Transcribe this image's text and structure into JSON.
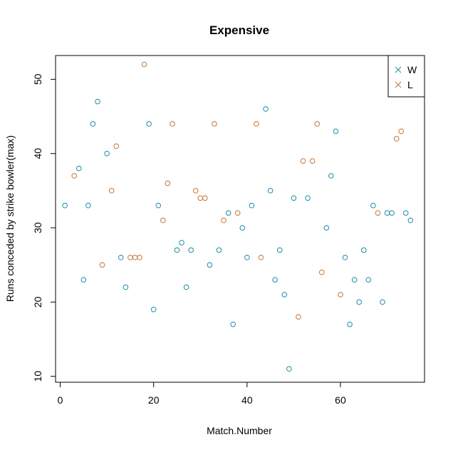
{
  "chart_data": {
    "type": "scatter",
    "title": "Expensive",
    "xlabel": "Match.Number",
    "ylabel": "Runs conceded by strike bowler(max)",
    "xlim": [
      -1,
      78
    ],
    "ylim": [
      9.2,
      53.2
    ],
    "xticks": [
      0,
      20,
      40,
      60
    ],
    "yticks": [
      10,
      20,
      30,
      40,
      50
    ],
    "legend_position": "top-right",
    "series": [
      {
        "name": "W",
        "color": "#1b8ca6",
        "points": [
          [
            1,
            33
          ],
          [
            4,
            38
          ],
          [
            5,
            23
          ],
          [
            6,
            33
          ],
          [
            7,
            44
          ],
          [
            8,
            47
          ],
          [
            10,
            40
          ],
          [
            13,
            26
          ],
          [
            14,
            22
          ],
          [
            19,
            44
          ],
          [
            20,
            19
          ],
          [
            21,
            33
          ],
          [
            25,
            27
          ],
          [
            26,
            28
          ],
          [
            27,
            22
          ],
          [
            28,
            27
          ],
          [
            32,
            25
          ],
          [
            34,
            27
          ],
          [
            36,
            32
          ],
          [
            37,
            17
          ],
          [
            39,
            30
          ],
          [
            40,
            26
          ],
          [
            41,
            33
          ],
          [
            44,
            46
          ],
          [
            45,
            35
          ],
          [
            46,
            23
          ],
          [
            47,
            27
          ],
          [
            48,
            21
          ],
          [
            49,
            11
          ],
          [
            50,
            34
          ],
          [
            53,
            34
          ],
          [
            57,
            30
          ],
          [
            58,
            37
          ],
          [
            59,
            43
          ],
          [
            61,
            26
          ],
          [
            62,
            17
          ],
          [
            63,
            23
          ],
          [
            64,
            20
          ],
          [
            65,
            27
          ],
          [
            66,
            23
          ],
          [
            67,
            33
          ],
          [
            69,
            20
          ],
          [
            70,
            32
          ],
          [
            71,
            32
          ],
          [
            74,
            32
          ],
          [
            75,
            31
          ]
        ]
      },
      {
        "name": "L",
        "color": "#c8742f",
        "points": [
          [
            3,
            37
          ],
          [
            9,
            25
          ],
          [
            11,
            35
          ],
          [
            12,
            41
          ],
          [
            15,
            26
          ],
          [
            16,
            26
          ],
          [
            17,
            26
          ],
          [
            18,
            52
          ],
          [
            22,
            31
          ],
          [
            23,
            36
          ],
          [
            24,
            44
          ],
          [
            29,
            35
          ],
          [
            30,
            34
          ],
          [
            31,
            34
          ],
          [
            33,
            44
          ],
          [
            35,
            31
          ],
          [
            38,
            32
          ],
          [
            42,
            44
          ],
          [
            43,
            26
          ],
          [
            51,
            18
          ],
          [
            52,
            39
          ],
          [
            54,
            39
          ],
          [
            55,
            44
          ],
          [
            56,
            24
          ],
          [
            60,
            21
          ],
          [
            68,
            32
          ],
          [
            72,
            42
          ],
          [
            73,
            43
          ]
        ]
      }
    ]
  }
}
